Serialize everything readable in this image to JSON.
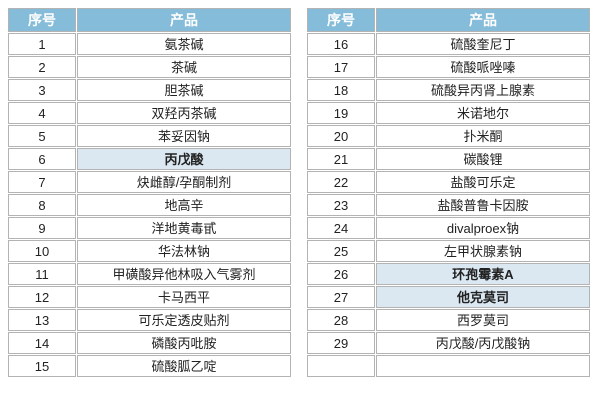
{
  "colors": {
    "header_bg": "#84BCD9",
    "header_text": "#FFFFFF",
    "highlight_bg": "#DBE8F2",
    "border": "#B3B3B3",
    "text": "#222222",
    "page_bg": "#FFFFFF"
  },
  "tables": [
    {
      "name": "left",
      "headers": [
        "序号",
        "产品"
      ],
      "rows": [
        {
          "no": "1",
          "product": "氨茶碱",
          "highlight": false
        },
        {
          "no": "2",
          "product": "茶碱",
          "highlight": false
        },
        {
          "no": "3",
          "product": "胆茶碱",
          "highlight": false
        },
        {
          "no": "4",
          "product": "双羟丙茶碱",
          "highlight": false
        },
        {
          "no": "5",
          "product": "苯妥因钠",
          "highlight": false
        },
        {
          "no": "6",
          "product": "丙戊酸",
          "highlight": true
        },
        {
          "no": "7",
          "product": "炔雌醇/孕酮制剂",
          "highlight": false
        },
        {
          "no": "8",
          "product": "地高辛",
          "highlight": false
        },
        {
          "no": "9",
          "product": "洋地黄毒甙",
          "highlight": false
        },
        {
          "no": "10",
          "product": "华法林钠",
          "highlight": false
        },
        {
          "no": "11",
          "product": "甲磺酸异他林吸入气雾剂",
          "highlight": false
        },
        {
          "no": "12",
          "product": "卡马西平",
          "highlight": false
        },
        {
          "no": "13",
          "product": "可乐定透皮贴剂",
          "highlight": false
        },
        {
          "no": "14",
          "product": "磷酸丙吡胺",
          "highlight": false
        },
        {
          "no": "15",
          "product": "硫酸胍乙啶",
          "highlight": false
        }
      ]
    },
    {
      "name": "right",
      "headers": [
        "序号",
        "产品"
      ],
      "rows": [
        {
          "no": "16",
          "product": "硫酸奎尼丁",
          "highlight": false
        },
        {
          "no": "17",
          "product": "硫酸哌唑嗪",
          "highlight": false
        },
        {
          "no": "18",
          "product": "硫酸异丙肾上腺素",
          "highlight": false
        },
        {
          "no": "19",
          "product": "米诺地尔",
          "highlight": false
        },
        {
          "no": "20",
          "product": "扑米酮",
          "highlight": false
        },
        {
          "no": "21",
          "product": "碳酸锂",
          "highlight": false
        },
        {
          "no": "22",
          "product": "盐酸可乐定",
          "highlight": false
        },
        {
          "no": "23",
          "product": "盐酸普鲁卡因胺",
          "highlight": false
        },
        {
          "no": "24",
          "product": "divalproex钠",
          "highlight": false
        },
        {
          "no": "25",
          "product": "左甲状腺素钠",
          "highlight": false
        },
        {
          "no": "26",
          "product": "环孢霉素A",
          "highlight": true
        },
        {
          "no": "27",
          "product": "他克莫司",
          "highlight": true
        },
        {
          "no": "28",
          "product": "西罗莫司",
          "highlight": false
        },
        {
          "no": "29",
          "product": "丙戊酸/丙戊酸钠",
          "highlight": false
        },
        {
          "no": "",
          "product": "",
          "highlight": false
        }
      ]
    }
  ]
}
